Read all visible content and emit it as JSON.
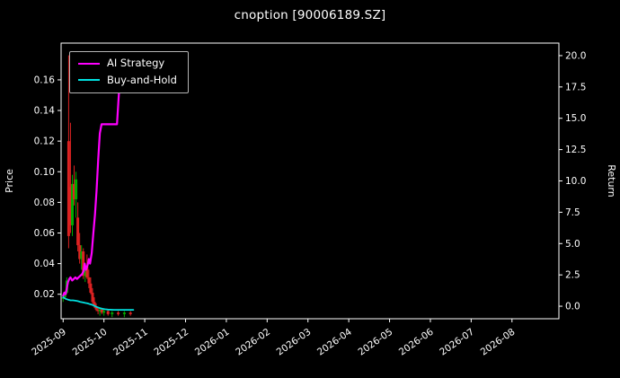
{
  "title": "cnoption [90006189.SZ]",
  "legend": {
    "items": [
      {
        "label": "AI Strategy",
        "color": "#ff00ff"
      },
      {
        "label": "Buy-and-Hold",
        "color": "#00e0e0"
      }
    ]
  },
  "chart_data": {
    "type": "line",
    "title": "cnoption [90006189.SZ]",
    "background": "#000000",
    "text_color": "#ffffff",
    "grid": "off",
    "legend_position": "upper-left",
    "x_tick_labels": [
      "2025-09",
      "2025-10",
      "2025-11",
      "2025-12",
      "2026-01",
      "2026-02",
      "2026-03",
      "2026-04",
      "2026-05",
      "2026-06",
      "2026-07",
      "2026-08"
    ],
    "x_tick_positions": [
      0,
      1,
      2,
      3,
      4,
      5,
      6,
      7,
      8,
      9,
      10,
      11
    ],
    "x_range": [
      -0.05,
      12.15
    ],
    "left_axis": {
      "label": "Price",
      "tick_values": [
        0.02,
        0.04,
        0.06,
        0.08,
        0.1,
        0.12,
        0.14,
        0.16
      ],
      "tick_labels": [
        "0.02",
        "0.04",
        "0.06",
        "0.08",
        "0.10",
        "0.12",
        "0.14",
        "0.16"
      ],
      "range": [
        0.004,
        0.184
      ]
    },
    "right_axis": {
      "label": "Return",
      "tick_values": [
        0,
        2.5,
        5,
        7.5,
        10,
        12.5,
        15,
        17.5,
        20
      ],
      "tick_labels": [
        "0.0",
        "2.5",
        "5.0",
        "7.5",
        "10.0",
        "12.5",
        "15.0",
        "17.5",
        "20.0"
      ],
      "range": [
        -1.0,
        21.0
      ]
    },
    "series": [
      {
        "name": "AI Strategy",
        "color": "#ff00ff",
        "width": 2.2,
        "axis": "left",
        "points": [
          [
            0.0,
            0.019
          ],
          [
            0.03,
            0.021
          ],
          [
            0.06,
            0.02
          ],
          [
            0.09,
            0.024
          ],
          [
            0.12,
            0.028
          ],
          [
            0.15,
            0.03
          ],
          [
            0.18,
            0.031
          ],
          [
            0.22,
            0.029
          ],
          [
            0.26,
            0.03
          ],
          [
            0.3,
            0.031
          ],
          [
            0.34,
            0.03
          ],
          [
            0.38,
            0.031
          ],
          [
            0.42,
            0.032
          ],
          [
            0.46,
            0.033
          ],
          [
            0.5,
            0.035
          ],
          [
            0.53,
            0.04
          ],
          [
            0.56,
            0.036
          ],
          [
            0.6,
            0.039
          ],
          [
            0.63,
            0.043
          ],
          [
            0.66,
            0.04
          ],
          [
            0.7,
            0.047
          ],
          [
            0.74,
            0.06
          ],
          [
            0.78,
            0.072
          ],
          [
            0.82,
            0.088
          ],
          [
            0.86,
            0.108
          ],
          [
            0.9,
            0.125
          ],
          [
            0.94,
            0.131
          ],
          [
            1.05,
            0.131
          ],
          [
            1.2,
            0.131
          ],
          [
            1.32,
            0.131
          ],
          [
            1.36,
            0.148
          ],
          [
            1.4,
            0.164
          ],
          [
            1.44,
            0.176
          ]
        ]
      },
      {
        "name": "Buy-and-Hold",
        "color": "#00e0e0",
        "width": 1.8,
        "axis": "left",
        "points": [
          [
            0.0,
            0.018
          ],
          [
            0.06,
            0.017
          ],
          [
            0.12,
            0.0165
          ],
          [
            0.18,
            0.016
          ],
          [
            0.24,
            0.016
          ],
          [
            0.3,
            0.0158
          ],
          [
            0.36,
            0.0155
          ],
          [
            0.42,
            0.015
          ],
          [
            0.48,
            0.0147
          ],
          [
            0.54,
            0.0143
          ],
          [
            0.6,
            0.014
          ],
          [
            0.66,
            0.0135
          ],
          [
            0.72,
            0.013
          ],
          [
            0.78,
            0.0122
          ],
          [
            0.84,
            0.0115
          ],
          [
            0.9,
            0.011
          ],
          [
            0.96,
            0.0105
          ],
          [
            1.02,
            0.0102
          ],
          [
            1.1,
            0.01
          ],
          [
            1.25,
            0.0098
          ],
          [
            1.45,
            0.0098
          ],
          [
            1.6,
            0.0098
          ],
          [
            1.72,
            0.0098
          ]
        ]
      }
    ],
    "candles": {
      "up_color": "#00aa00",
      "down_color": "#dd2222",
      "items": [
        [
          0.0,
          0.017,
          0.019,
          0.015,
          0.018
        ],
        [
          0.045,
          0.018,
          0.022,
          0.017,
          0.021
        ],
        [
          0.09,
          0.021,
          0.031,
          0.02,
          0.029
        ],
        [
          0.135,
          0.12,
          0.176,
          0.05,
          0.058
        ],
        [
          0.18,
          0.09,
          0.132,
          0.06,
          0.065
        ],
        [
          0.225,
          0.065,
          0.098,
          0.058,
          0.092
        ],
        [
          0.27,
          0.092,
          0.104,
          0.078,
          0.082
        ],
        [
          0.315,
          0.082,
          0.1,
          0.07,
          0.095
        ],
        [
          0.36,
          0.07,
          0.08,
          0.048,
          0.052
        ],
        [
          0.405,
          0.052,
          0.06,
          0.04,
          0.043
        ],
        [
          0.45,
          0.043,
          0.052,
          0.036,
          0.048
        ],
        [
          0.495,
          0.048,
          0.05,
          0.03,
          0.032
        ],
        [
          0.54,
          0.032,
          0.04,
          0.028,
          0.038
        ],
        [
          0.585,
          0.038,
          0.046,
          0.03,
          0.031
        ],
        [
          0.63,
          0.031,
          0.036,
          0.024,
          0.027
        ],
        [
          0.675,
          0.027,
          0.031,
          0.02,
          0.021
        ],
        [
          0.72,
          0.021,
          0.024,
          0.014,
          0.015
        ],
        [
          0.765,
          0.015,
          0.018,
          0.011,
          0.012
        ],
        [
          0.81,
          0.012,
          0.014,
          0.009,
          0.01
        ],
        [
          0.855,
          0.01,
          0.012,
          0.007,
          0.009
        ],
        [
          0.9,
          0.009,
          0.011,
          0.006,
          0.01
        ],
        [
          0.95,
          0.01,
          0.011,
          0.007,
          0.008
        ],
        [
          1.0,
          0.008,
          0.01,
          0.006,
          0.009
        ],
        [
          1.1,
          0.009,
          0.01,
          0.006,
          0.007
        ],
        [
          1.2,
          0.007,
          0.009,
          0.005,
          0.008
        ],
        [
          1.35,
          0.008,
          0.009,
          0.006,
          0.007
        ],
        [
          1.5,
          0.007,
          0.009,
          0.005,
          0.008
        ],
        [
          1.65,
          0.008,
          0.009,
          0.006,
          0.007
        ]
      ]
    }
  }
}
